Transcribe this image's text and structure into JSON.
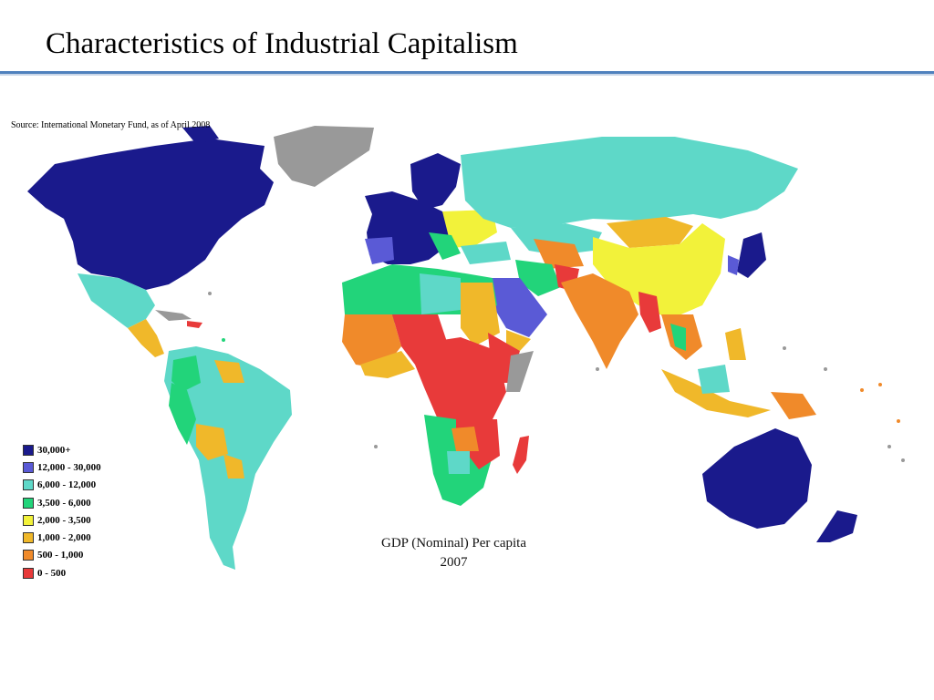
{
  "slide": {
    "title": "Characteristics of Industrial Capitalism"
  },
  "map": {
    "source": "Source: International Monetary Fund, as of April 2008",
    "caption_title": "GDP (Nominal) Per capita",
    "caption_year": "2007",
    "legend": [
      {
        "label": "30,000+",
        "color": "#1a1a8c"
      },
      {
        "label": "12,000 - 30,000",
        "color": "#5a5ad6"
      },
      {
        "label": "6,000 - 12,000",
        "color": "#5ed8c8"
      },
      {
        "label": "3,500 - 6,000",
        "color": "#22d47a"
      },
      {
        "label": "2,000 - 3,500",
        "color": "#f2f23a"
      },
      {
        "label": "1,000 - 2,000",
        "color": "#f0b82a"
      },
      {
        "label": "500 - 1,000",
        "color": "#f08a2a"
      },
      {
        "label": "0 - 500",
        "color": "#e83a3a"
      }
    ]
  }
}
